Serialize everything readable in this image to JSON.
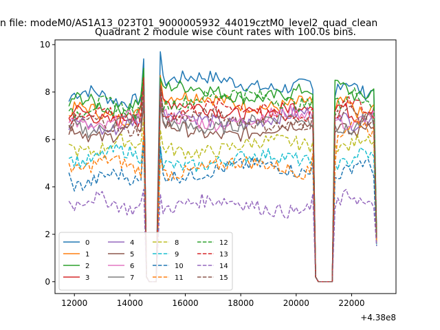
{
  "figure": {
    "suptitle": "n file: modeM0/AS1A13_023T01_9000005932_44019cztM0_level2_quad_clean",
    "title": "Quadrant 2 module wise count rates with 100.0s bins.",
    "offset_text": "+4.38e8"
  },
  "chart_data": {
    "type": "line",
    "xlim": [
      11300,
      23600
    ],
    "ylim": [
      -0.5,
      10.2
    ],
    "xticks": [
      12000,
      14000,
      16000,
      18000,
      20000,
      22000
    ],
    "yticks": [
      0,
      2,
      4,
      6,
      8,
      10
    ],
    "grid": false,
    "legend_position": "lower-left",
    "legend_ncol": 4,
    "segments": [
      [
        11800,
        14500
      ],
      [
        15100,
        20600
      ],
      [
        21400,
        22900
      ]
    ],
    "gap_points": [
      [
        14600,
        0.2
      ],
      [
        14700,
        0
      ],
      [
        14950,
        0
      ],
      [
        20700,
        0.2
      ],
      [
        20800,
        0
      ],
      [
        21300,
        0
      ]
    ],
    "series": [
      {
        "name": "0",
        "color": "#1f77b4",
        "dash": "solid",
        "levels": [
          7.8,
          8.4,
          8.2
        ],
        "start_end": [
          7.6,
          9.4,
          9.7,
          8.1,
          7.8,
          2.1
        ]
      },
      {
        "name": "1",
        "color": "#ff7f0e",
        "dash": "solid",
        "levels": [
          7.1,
          7.6,
          7.3
        ],
        "start_end": [
          7.0,
          8.2,
          8.7,
          7.5,
          7.2,
          1.9
        ]
      },
      {
        "name": "2",
        "color": "#2ca02c",
        "dash": "solid",
        "levels": [
          7.5,
          8.0,
          8.0
        ],
        "start_end": [
          7.4,
          9.0,
          8.6,
          7.9,
          8.5,
          2.0
        ]
      },
      {
        "name": "3",
        "color": "#d62728",
        "dash": "solid",
        "levels": [
          7.0,
          7.3,
          7.2
        ],
        "start_end": [
          6.9,
          8.5,
          8.3,
          7.3,
          7.2,
          1.8
        ]
      },
      {
        "name": "4",
        "color": "#9467bd",
        "dash": "solid",
        "levels": [
          6.6,
          6.9,
          6.9
        ],
        "start_end": [
          6.4,
          7.8,
          8.0,
          6.9,
          6.9,
          1.7
        ]
      },
      {
        "name": "5",
        "color": "#8c564b",
        "dash": "solid",
        "levels": [
          6.3,
          6.4,
          6.5
        ],
        "start_end": [
          6.2,
          7.5,
          7.6,
          6.5,
          6.3,
          1.7
        ]
      },
      {
        "name": "6",
        "color": "#e377c2",
        "dash": "solid",
        "levels": [
          6.7,
          6.9,
          6.8
        ],
        "start_end": [
          6.7,
          7.9,
          7.8,
          6.9,
          6.8,
          1.8
        ]
      },
      {
        "name": "7",
        "color": "#7f7f7f",
        "dash": "solid",
        "levels": [
          6.6,
          6.7,
          6.6
        ],
        "start_end": [
          6.5,
          7.6,
          7.4,
          6.6,
          6.6,
          1.7
        ]
      },
      {
        "name": "8",
        "color": "#bcbd22",
        "dash": "dashed",
        "levels": [
          5.7,
          5.7,
          5.9
        ],
        "start_end": [
          5.8,
          6.9,
          6.4,
          5.9,
          5.8,
          1.6
        ]
      },
      {
        "name": "9",
        "color": "#17becf",
        "dash": "dashed",
        "levels": [
          5.3,
          5.1,
          5.2
        ],
        "start_end": [
          5.2,
          6.1,
          5.7,
          5.3,
          5.0,
          1.5
        ]
      },
      {
        "name": "10",
        "color": "#1f77b4",
        "dash": "dashed",
        "levels": [
          4.3,
          4.7,
          4.8
        ],
        "start_end": [
          4.6,
          5.9,
          5.7,
          5.0,
          4.4,
          1.5
        ]
      },
      {
        "name": "11",
        "color": "#ff7f0e",
        "dash": "dashed",
        "levels": [
          4.9,
          4.8,
          6.5
        ],
        "start_end": [
          5.0,
          6.4,
          5.2,
          5.4,
          4.9,
          1.6
        ]
      },
      {
        "name": "12",
        "color": "#2ca02c",
        "dash": "dashed",
        "levels": [
          7.3,
          7.7,
          7.7
        ],
        "start_end": [
          7.2,
          8.8,
          8.3,
          7.8,
          7.7,
          1.9
        ]
      },
      {
        "name": "13",
        "color": "#d62728",
        "dash": "dashed",
        "levels": [
          7.0,
          7.2,
          7.3
        ],
        "start_end": [
          6.9,
          8.6,
          8.1,
          7.3,
          7.0,
          1.8
        ]
      },
      {
        "name": "14",
        "color": "#9467bd",
        "dash": "dashed",
        "levels": [
          3.3,
          3.2,
          3.4
        ],
        "start_end": [
          3.4,
          3.9,
          3.7,
          3.7,
          3.1,
          1.5
        ]
      },
      {
        "name": "15",
        "color": "#8c564b",
        "dash": "dashed",
        "levels": [
          6.6,
          6.8,
          7.0
        ],
        "start_end": [
          6.6,
          8.3,
          8.3,
          7.1,
          7.0,
          1.8
        ]
      }
    ]
  }
}
